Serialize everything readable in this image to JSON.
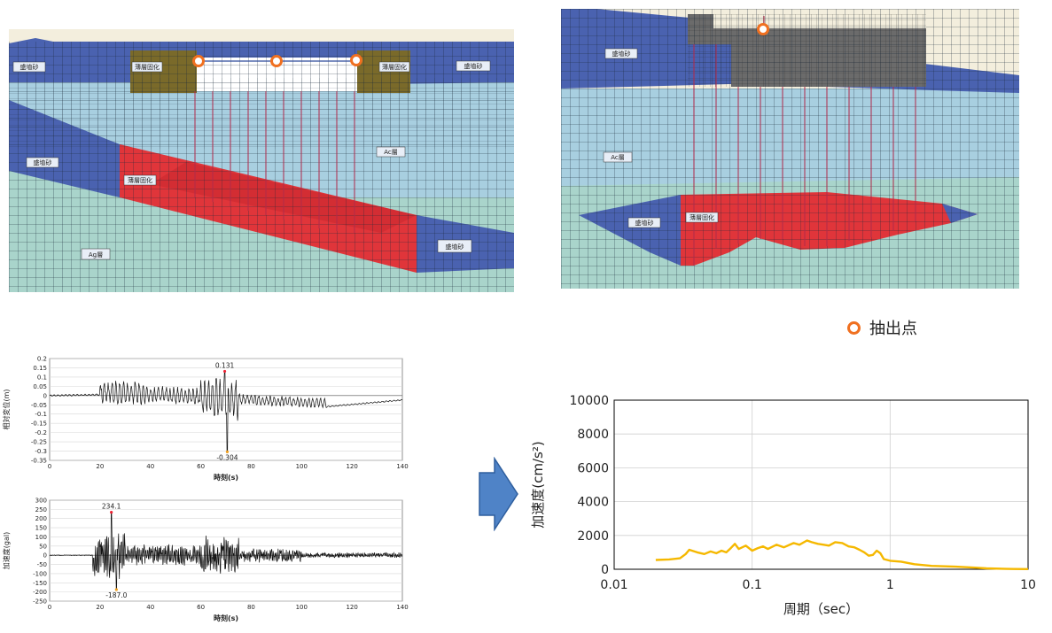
{
  "colors": {
    "extraction_point": "#f07020",
    "spectrum_line": "#f5b800",
    "sand_blue": "#4a62b0",
    "improved_red": "#e0353a",
    "clay_light": "#a8cfe0",
    "gravel_green": "#a9d4cb",
    "structure_gray": "#6b6b6b",
    "arrow_blue": "#4f83c7"
  },
  "left_section": {
    "labels": {
      "sand_a": "盛埴砂",
      "improve_a": "薄層固化",
      "improve_b": "薄層固化",
      "sand_b": "盛埴砂",
      "sand_c": "盛埴砂",
      "improve_c": "薄層固化",
      "ac_layer": "Ac層",
      "sand_d": "盛埴砂",
      "ag_layer": "Ag層"
    }
  },
  "right_section": {
    "labels": {
      "sand_a": "盛埴砂",
      "ac_layer": "Ac層",
      "sand_b": "盛埴砂",
      "improve_a": "薄層固化"
    }
  },
  "legend": {
    "icon": "circle-icon",
    "label": "抽出点"
  },
  "chart_data": [
    {
      "type": "line",
      "xlabel": "時刻(s)",
      "ylabel": "相対変位(m)",
      "xlim": [
        0,
        140
      ],
      "ylim": [
        -0.35,
        0.2
      ],
      "xticks": [
        0,
        20,
        40,
        60,
        80,
        100,
        120,
        140
      ],
      "yticks": [
        0.2,
        0.15,
        0.1,
        0.05,
        0,
        -0.05,
        -0.1,
        -0.15,
        -0.2,
        -0.25,
        -0.3,
        -0.35
      ],
      "annotations": [
        {
          "x": 69.5,
          "y": 0.131,
          "text": "0.131"
        },
        {
          "x": 70.5,
          "y": -0.304,
          "text": "-0.304"
        }
      ],
      "grid": true
    },
    {
      "type": "line",
      "xlabel": "時刻(s)",
      "ylabel": "加速度(gal)",
      "xlim": [
        0,
        140
      ],
      "ylim": [
        -250,
        300
      ],
      "xticks": [
        0,
        20,
        40,
        60,
        80,
        100,
        120,
        140
      ],
      "yticks": [
        300,
        250,
        200,
        150,
        100,
        50,
        0,
        -50,
        -100,
        -150,
        -200,
        -250
      ],
      "annotations": [
        {
          "x": 24.5,
          "y": 234.1,
          "text": "234.1"
        },
        {
          "x": 26.5,
          "y": -187.0,
          "text": "-187.0"
        }
      ],
      "grid": true
    },
    {
      "type": "line",
      "xscale": "log",
      "xlabel": "周期（sec）",
      "ylabel": "加速度(cm/s²)",
      "xlim": [
        0.01,
        10
      ],
      "ylim": [
        0,
        10000
      ],
      "xticks": [
        "0.01",
        "0.1",
        "1",
        "10"
      ],
      "yticks": [
        0,
        2000,
        4000,
        6000,
        8000,
        10000
      ],
      "grid": true,
      "series": [
        {
          "x": [
            0.02,
            0.025,
            0.03,
            0.033,
            0.035,
            0.04,
            0.045,
            0.05,
            0.055,
            0.06,
            0.065,
            0.07,
            0.075,
            0.08,
            0.09,
            0.1,
            0.11,
            0.12,
            0.13,
            0.15,
            0.17,
            0.2,
            0.22,
            0.25,
            0.27,
            0.3,
            0.33,
            0.36,
            0.4,
            0.45,
            0.5,
            0.55,
            0.6,
            0.65,
            0.7,
            0.75,
            0.8,
            0.85,
            0.9,
            1.0,
            1.2,
            1.5,
            2.0,
            3.0,
            4.0,
            5.0,
            7.0,
            10.0
          ],
          "values": [
            550,
            580,
            650,
            900,
            1150,
            1000,
            900,
            1050,
            950,
            1100,
            1000,
            1250,
            1500,
            1200,
            1400,
            1100,
            1250,
            1350,
            1200,
            1450,
            1300,
            1550,
            1450,
            1700,
            1600,
            1500,
            1450,
            1400,
            1600,
            1550,
            1350,
            1300,
            1150,
            1000,
            800,
            850,
            1100,
            950,
            600,
            500,
            450,
            300,
            200,
            150,
            100,
            50,
            20,
            10
          ]
        }
      ]
    }
  ]
}
